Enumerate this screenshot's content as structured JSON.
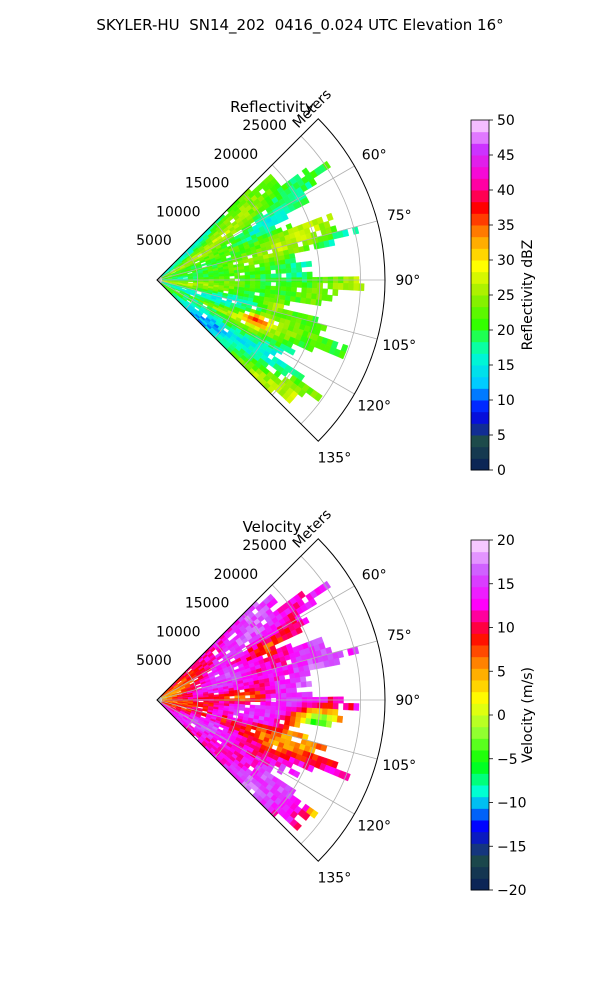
{
  "header": {
    "title": "SKYLER-HU  SN14_202  0416_0.024 UTC Elevation 16°"
  },
  "chart_data": [
    {
      "type": "heatmap",
      "subtype": "polar-sector-ppi",
      "title": "Reflectivity",
      "radial_axis_label": "Meters",
      "radial_ticks": [
        5000,
        10000,
        15000,
        20000,
        25000
      ],
      "radial_tick_labels": [
        "5000",
        "10000",
        "15000",
        "20000",
        "25000"
      ],
      "radial_range": [
        0,
        28000
      ],
      "azimuth_range_deg": [
        45,
        135
      ],
      "azimuth_ticks": [
        60,
        75,
        90,
        105,
        120,
        135
      ],
      "azimuth_tick_labels": [
        "60°",
        "75°",
        "90°",
        "105°",
        "120°",
        "135°"
      ],
      "grid": true,
      "colorbar": {
        "label": "Reflectivity dBZ",
        "range": [
          0,
          50
        ],
        "ticks": [
          0,
          5,
          10,
          15,
          20,
          25,
          30,
          35,
          40,
          45,
          50
        ],
        "tick_labels": [
          "0",
          "5",
          "10",
          "15",
          "20",
          "25",
          "30",
          "35",
          "40",
          "45",
          "50"
        ],
        "position": "right"
      },
      "field_summary": {
        "dominant_value_range": [
          15,
          25
        ],
        "peak_value_approx": 38
      }
    },
    {
      "type": "heatmap",
      "subtype": "polar-sector-ppi",
      "title": "Velocity",
      "radial_axis_label": "Meters",
      "radial_ticks": [
        5000,
        10000,
        15000,
        20000,
        25000
      ],
      "radial_tick_labels": [
        "5000",
        "10000",
        "15000",
        "20000",
        "25000"
      ],
      "radial_range": [
        0,
        28000
      ],
      "azimuth_range_deg": [
        45,
        135
      ],
      "azimuth_ticks": [
        60,
        75,
        90,
        105,
        120,
        135
      ],
      "azimuth_tick_labels": [
        "60°",
        "75°",
        "90°",
        "105°",
        "120°",
        "135°"
      ],
      "grid": true,
      "colorbar": {
        "label": "Velocity (m/s)",
        "range": [
          -20,
          20
        ],
        "ticks": [
          -20,
          -15,
          -10,
          -5,
          0,
          5,
          10,
          15,
          20
        ],
        "tick_labels": [
          "−20",
          "−15",
          "−10",
          "−5",
          "0",
          "5",
          "10",
          "15",
          "20"
        ],
        "position": "right"
      },
      "field_summary": {
        "dominant_value_range": [
          10,
          18
        ],
        "min_value_approx": -12
      }
    }
  ],
  "colors": {
    "reflectivity_stops": [
      "#081d58",
      "#1d4b4b",
      "#0000ff",
      "#00ccff",
      "#00ffcc",
      "#33ff00",
      "#99ee00",
      "#ffff00",
      "#ff9900",
      "#ff0000",
      "#ff00cc",
      "#cc33ff",
      "#ffe0ff"
    ],
    "velocity_stops": [
      "#081d58",
      "#1d4b4b",
      "#0000ff",
      "#00ffee",
      "#00ff00",
      "#99ff33",
      "#ffff00",
      "#ff9900",
      "#ff0000",
      "#ff00ff",
      "#cc55ff",
      "#ffe0ff"
    ],
    "grid": "#b0b0b0",
    "spine": "#000000"
  }
}
